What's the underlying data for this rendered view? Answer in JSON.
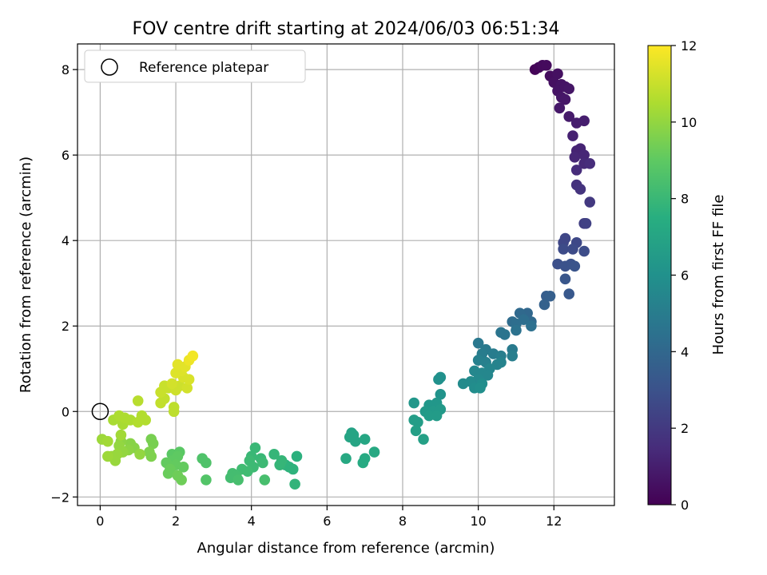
{
  "chart_data": {
    "type": "scatter",
    "title": "FOV centre drift starting at 2024/06/03 06:51:34",
    "xlabel": "Angular distance from reference (arcmin)",
    "ylabel": "Rotation from reference (arcmin)",
    "xlim": [
      -0.6,
      13.6
    ],
    "ylim": [
      -2.2,
      8.6
    ],
    "xticks": [
      0,
      2,
      4,
      6,
      8,
      10,
      12
    ],
    "yticks": [
      -2,
      0,
      2,
      4,
      6,
      8
    ],
    "grid": true,
    "legend": {
      "position": "top-left",
      "entries": [
        "Reference platepar"
      ]
    },
    "reference_point": {
      "x": 0,
      "y": 0
    },
    "colorbar": {
      "label": "Hours from first FF file",
      "range": [
        0,
        12
      ],
      "ticks": [
        0,
        2,
        4,
        6,
        8,
        10,
        12
      ],
      "colormap": "viridis"
    },
    "series": [
      {
        "points": [
          {
            "x": 11.5,
            "y": 8.0,
            "h": 0.1
          },
          {
            "x": 11.6,
            "y": 8.05,
            "h": 0.2
          },
          {
            "x": 11.7,
            "y": 8.1,
            "h": 0.3
          },
          {
            "x": 11.8,
            "y": 8.1,
            "h": 0.35
          },
          {
            "x": 11.9,
            "y": 7.85,
            "h": 0.4
          },
          {
            "x": 12.1,
            "y": 7.9,
            "h": 0.5
          },
          {
            "x": 12.0,
            "y": 7.7,
            "h": 0.5
          },
          {
            "x": 12.2,
            "y": 7.65,
            "h": 0.6
          },
          {
            "x": 12.1,
            "y": 7.5,
            "h": 0.6
          },
          {
            "x": 12.3,
            "y": 7.6,
            "h": 0.65
          },
          {
            "x": 12.4,
            "y": 7.55,
            "h": 0.7
          },
          {
            "x": 12.2,
            "y": 7.35,
            "h": 0.7
          },
          {
            "x": 12.3,
            "y": 7.3,
            "h": 0.75
          },
          {
            "x": 12.15,
            "y": 7.1,
            "h": 0.8
          },
          {
            "x": 12.4,
            "y": 6.9,
            "h": 0.9
          },
          {
            "x": 12.6,
            "y": 6.75,
            "h": 0.95
          },
          {
            "x": 12.8,
            "y": 6.8,
            "h": 1.0
          },
          {
            "x": 12.5,
            "y": 6.45,
            "h": 1.1
          },
          {
            "x": 12.6,
            "y": 6.1,
            "h": 1.2
          },
          {
            "x": 12.7,
            "y": 6.15,
            "h": 1.2
          },
          {
            "x": 12.8,
            "y": 6.0,
            "h": 1.3
          },
          {
            "x": 12.55,
            "y": 5.95,
            "h": 1.3
          },
          {
            "x": 12.8,
            "y": 5.8,
            "h": 1.4
          },
          {
            "x": 12.95,
            "y": 5.8,
            "h": 1.5
          },
          {
            "x": 12.6,
            "y": 5.65,
            "h": 1.5
          },
          {
            "x": 12.6,
            "y": 5.3,
            "h": 1.7
          },
          {
            "x": 12.7,
            "y": 5.2,
            "h": 1.8
          },
          {
            "x": 12.95,
            "y": 4.9,
            "h": 2.0
          },
          {
            "x": 12.8,
            "y": 4.4,
            "h": 2.2
          },
          {
            "x": 12.85,
            "y": 4.4,
            "h": 2.3
          },
          {
            "x": 12.3,
            "y": 4.05,
            "h": 2.5
          },
          {
            "x": 12.25,
            "y": 3.95,
            "h": 2.5
          },
          {
            "x": 12.6,
            "y": 3.95,
            "h": 2.6
          },
          {
            "x": 12.25,
            "y": 3.8,
            "h": 2.7
          },
          {
            "x": 12.5,
            "y": 3.8,
            "h": 2.7
          },
          {
            "x": 12.8,
            "y": 3.75,
            "h": 2.8
          },
          {
            "x": 12.1,
            "y": 3.45,
            "h": 2.9
          },
          {
            "x": 12.3,
            "y": 3.4,
            "h": 3.0
          },
          {
            "x": 12.45,
            "y": 3.45,
            "h": 3.0
          },
          {
            "x": 12.55,
            "y": 3.4,
            "h": 3.1
          },
          {
            "x": 12.3,
            "y": 3.1,
            "h": 3.2
          },
          {
            "x": 12.4,
            "y": 2.75,
            "h": 3.3
          },
          {
            "x": 11.8,
            "y": 2.7,
            "h": 3.5
          },
          {
            "x": 11.9,
            "y": 2.7,
            "h": 3.6
          },
          {
            "x": 11.75,
            "y": 2.5,
            "h": 3.7
          },
          {
            "x": 11.3,
            "y": 2.3,
            "h": 4.0
          },
          {
            "x": 11.1,
            "y": 2.3,
            "h": 4.1
          },
          {
            "x": 11.4,
            "y": 2.1,
            "h": 4.1
          },
          {
            "x": 10.9,
            "y": 2.1,
            "h": 4.2
          },
          {
            "x": 11.0,
            "y": 2.05,
            "h": 4.3
          },
          {
            "x": 11.2,
            "y": 2.15,
            "h": 4.3
          },
          {
            "x": 11.4,
            "y": 2.0,
            "h": 4.4
          },
          {
            "x": 11.0,
            "y": 1.9,
            "h": 4.5
          },
          {
            "x": 10.6,
            "y": 1.85,
            "h": 4.6
          },
          {
            "x": 10.7,
            "y": 1.8,
            "h": 4.6
          },
          {
            "x": 10.0,
            "y": 1.6,
            "h": 4.8
          },
          {
            "x": 10.2,
            "y": 1.45,
            "h": 4.9
          },
          {
            "x": 10.9,
            "y": 1.45,
            "h": 4.9
          },
          {
            "x": 10.1,
            "y": 1.35,
            "h": 5.0
          },
          {
            "x": 10.4,
            "y": 1.35,
            "h": 5.0
          },
          {
            "x": 10.6,
            "y": 1.3,
            "h": 5.1
          },
          {
            "x": 10.9,
            "y": 1.3,
            "h": 5.1
          },
          {
            "x": 10.0,
            "y": 1.2,
            "h": 5.2
          },
          {
            "x": 10.2,
            "y": 1.15,
            "h": 5.2
          },
          {
            "x": 10.5,
            "y": 1.1,
            "h": 5.3
          },
          {
            "x": 10.6,
            "y": 1.15,
            "h": 5.3
          },
          {
            "x": 10.3,
            "y": 1.0,
            "h": 5.4
          },
          {
            "x": 9.9,
            "y": 0.95,
            "h": 5.5
          },
          {
            "x": 10.1,
            "y": 0.9,
            "h": 5.5
          },
          {
            "x": 10.25,
            "y": 0.85,
            "h": 5.5
          },
          {
            "x": 10.0,
            "y": 0.75,
            "h": 5.6
          },
          {
            "x": 9.8,
            "y": 0.7,
            "h": 5.7
          },
          {
            "x": 9.6,
            "y": 0.65,
            "h": 5.7
          },
          {
            "x": 10.1,
            "y": 0.65,
            "h": 5.8
          },
          {
            "x": 9.9,
            "y": 0.55,
            "h": 5.8
          },
          {
            "x": 10.05,
            "y": 0.55,
            "h": 5.9
          },
          {
            "x": 9.0,
            "y": 0.8,
            "h": 6.0
          },
          {
            "x": 8.95,
            "y": 0.75,
            "h": 6.0
          },
          {
            "x": 9.0,
            "y": 0.4,
            "h": 6.1
          },
          {
            "x": 8.3,
            "y": 0.2,
            "h": 6.3
          },
          {
            "x": 8.7,
            "y": 0.15,
            "h": 6.3
          },
          {
            "x": 8.9,
            "y": 0.2,
            "h": 6.3
          },
          {
            "x": 8.6,
            "y": 0.0,
            "h": 6.4
          },
          {
            "x": 8.8,
            "y": 0.0,
            "h": 6.4
          },
          {
            "x": 9.0,
            "y": 0.05,
            "h": 6.4
          },
          {
            "x": 8.7,
            "y": -0.1,
            "h": 6.5
          },
          {
            "x": 8.9,
            "y": -0.1,
            "h": 6.5
          },
          {
            "x": 8.3,
            "y": -0.2,
            "h": 6.6
          },
          {
            "x": 8.4,
            "y": -0.25,
            "h": 6.6
          },
          {
            "x": 8.35,
            "y": -0.45,
            "h": 6.7
          },
          {
            "x": 8.55,
            "y": -0.65,
            "h": 6.8
          },
          {
            "x": 6.65,
            "y": -0.5,
            "h": 6.9
          },
          {
            "x": 6.7,
            "y": -0.55,
            "h": 7.0
          },
          {
            "x": 6.6,
            "y": -0.6,
            "h": 7.0
          },
          {
            "x": 6.75,
            "y": -0.7,
            "h": 7.0
          },
          {
            "x": 7.0,
            "y": -0.65,
            "h": 7.1
          },
          {
            "x": 7.25,
            "y": -0.95,
            "h": 7.2
          },
          {
            "x": 6.5,
            "y": -1.1,
            "h": 7.2
          },
          {
            "x": 7.0,
            "y": -1.1,
            "h": 7.3
          },
          {
            "x": 6.95,
            "y": -1.2,
            "h": 7.3
          },
          {
            "x": 5.2,
            "y": -1.05,
            "h": 7.6
          },
          {
            "x": 4.9,
            "y": -1.25,
            "h": 7.6
          },
          {
            "x": 5.0,
            "y": -1.3,
            "h": 7.7
          },
          {
            "x": 5.1,
            "y": -1.35,
            "h": 7.7
          },
          {
            "x": 5.15,
            "y": -1.7,
            "h": 7.8
          },
          {
            "x": 4.6,
            "y": -1.0,
            "h": 7.9
          },
          {
            "x": 4.8,
            "y": -1.15,
            "h": 7.9
          },
          {
            "x": 4.75,
            "y": -1.25,
            "h": 7.9
          },
          {
            "x": 4.1,
            "y": -0.85,
            "h": 8.0
          },
          {
            "x": 4.0,
            "y": -1.05,
            "h": 8.0
          },
          {
            "x": 4.25,
            "y": -1.1,
            "h": 8.0
          },
          {
            "x": 3.95,
            "y": -1.15,
            "h": 8.1
          },
          {
            "x": 4.3,
            "y": -1.2,
            "h": 8.1
          },
          {
            "x": 4.05,
            "y": -1.3,
            "h": 8.1
          },
          {
            "x": 3.75,
            "y": -1.35,
            "h": 8.2
          },
          {
            "x": 3.9,
            "y": -1.4,
            "h": 8.2
          },
          {
            "x": 3.5,
            "y": -1.45,
            "h": 8.3
          },
          {
            "x": 3.6,
            "y": -1.5,
            "h": 8.3
          },
          {
            "x": 3.45,
            "y": -1.55,
            "h": 8.3
          },
          {
            "x": 3.65,
            "y": -1.6,
            "h": 8.4
          },
          {
            "x": 4.35,
            "y": -1.6,
            "h": 8.4
          },
          {
            "x": 2.8,
            "y": -1.2,
            "h": 8.6
          },
          {
            "x": 2.7,
            "y": -1.1,
            "h": 8.6
          },
          {
            "x": 2.8,
            "y": -1.6,
            "h": 8.7
          },
          {
            "x": 2.1,
            "y": -0.95,
            "h": 8.9
          },
          {
            "x": 1.9,
            "y": -1.0,
            "h": 8.9
          },
          {
            "x": 2.05,
            "y": -1.05,
            "h": 9.0
          },
          {
            "x": 1.9,
            "y": -1.15,
            "h": 9.0
          },
          {
            "x": 1.75,
            "y": -1.2,
            "h": 9.1
          },
          {
            "x": 2.0,
            "y": -1.25,
            "h": 9.1
          },
          {
            "x": 2.2,
            "y": -1.3,
            "h": 9.1
          },
          {
            "x": 1.85,
            "y": -1.35,
            "h": 9.2
          },
          {
            "x": 1.8,
            "y": -1.45,
            "h": 9.2
          },
          {
            "x": 2.05,
            "y": -1.5,
            "h": 9.3
          },
          {
            "x": 2.15,
            "y": -1.6,
            "h": 9.3
          },
          {
            "x": 1.35,
            "y": -0.65,
            "h": 9.5
          },
          {
            "x": 1.4,
            "y": -0.75,
            "h": 9.5
          },
          {
            "x": 1.3,
            "y": -0.95,
            "h": 9.6
          },
          {
            "x": 1.35,
            "y": -1.05,
            "h": 9.6
          },
          {
            "x": 0.8,
            "y": -0.75,
            "h": 9.8
          },
          {
            "x": 0.9,
            "y": -0.85,
            "h": 9.8
          },
          {
            "x": 0.75,
            "y": -0.9,
            "h": 9.9
          },
          {
            "x": 0.55,
            "y": -0.7,
            "h": 9.9
          },
          {
            "x": 0.5,
            "y": -0.8,
            "h": 10.0
          },
          {
            "x": 0.6,
            "y": -0.95,
            "h": 10.0
          },
          {
            "x": 1.05,
            "y": -1.0,
            "h": 10.0
          },
          {
            "x": 0.45,
            "y": -1.0,
            "h": 10.1
          },
          {
            "x": 0.3,
            "y": -1.05,
            "h": 10.1
          },
          {
            "x": 0.4,
            "y": -1.15,
            "h": 10.1
          },
          {
            "x": 0.2,
            "y": -1.05,
            "h": 10.2
          },
          {
            "x": 0.05,
            "y": -0.65,
            "h": 10.2
          },
          {
            "x": 0.2,
            "y": -0.7,
            "h": 10.3
          },
          {
            "x": 0.55,
            "y": -0.55,
            "h": 10.3
          },
          {
            "x": 0.6,
            "y": -0.3,
            "h": 10.4
          },
          {
            "x": 0.35,
            "y": -0.2,
            "h": 10.4
          },
          {
            "x": 0.5,
            "y": -0.1,
            "h": 10.5
          },
          {
            "x": 0.65,
            "y": -0.15,
            "h": 10.5
          },
          {
            "x": 0.8,
            "y": -0.2,
            "h": 10.5
          },
          {
            "x": 1.1,
            "y": -0.1,
            "h": 10.6
          },
          {
            "x": 1.0,
            "y": -0.25,
            "h": 10.6
          },
          {
            "x": 1.2,
            "y": -0.2,
            "h": 10.6
          },
          {
            "x": 1.0,
            "y": 0.25,
            "h": 10.7
          },
          {
            "x": 1.95,
            "y": 0.0,
            "h": 10.8
          },
          {
            "x": 1.95,
            "y": 0.1,
            "h": 10.8
          },
          {
            "x": 1.6,
            "y": 0.2,
            "h": 10.9
          },
          {
            "x": 1.7,
            "y": 0.3,
            "h": 10.9
          },
          {
            "x": 1.6,
            "y": 0.45,
            "h": 11.0
          },
          {
            "x": 1.8,
            "y": 0.55,
            "h": 11.0
          },
          {
            "x": 1.7,
            "y": 0.6,
            "h": 11.0
          },
          {
            "x": 2.0,
            "y": 0.5,
            "h": 11.1
          },
          {
            "x": 2.1,
            "y": 0.6,
            "h": 11.1
          },
          {
            "x": 2.3,
            "y": 0.55,
            "h": 11.2
          },
          {
            "x": 1.9,
            "y": 0.65,
            "h": 11.2
          },
          {
            "x": 2.2,
            "y": 0.8,
            "h": 11.3
          },
          {
            "x": 2.35,
            "y": 0.75,
            "h": 11.3
          },
          {
            "x": 2.0,
            "y": 0.9,
            "h": 11.4
          },
          {
            "x": 2.15,
            "y": 0.95,
            "h": 11.4
          },
          {
            "x": 2.05,
            "y": 1.1,
            "h": 11.5
          },
          {
            "x": 2.25,
            "y": 1.05,
            "h": 11.5
          },
          {
            "x": 2.35,
            "y": 1.2,
            "h": 11.7
          },
          {
            "x": 2.45,
            "y": 1.3,
            "h": 11.8
          }
        ]
      }
    ]
  }
}
